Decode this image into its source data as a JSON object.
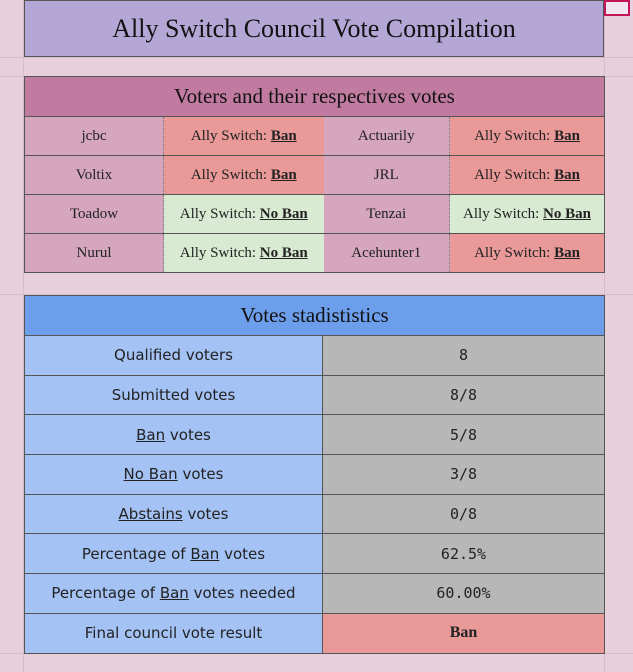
{
  "title": "Ally Switch Council Vote Compilation",
  "votes": {
    "header": "Voters and their respectives votes",
    "vote_prefix": "Ally Switch:",
    "rows": [
      {
        "a_name": "jcbc",
        "a_vote": "Ban",
        "b_name": "Actuarily",
        "b_vote": "Ban"
      },
      {
        "a_name": "Voltix",
        "a_vote": "Ban",
        "b_name": "JRL",
        "b_vote": "Ban"
      },
      {
        "a_name": "Toadow",
        "a_vote": "No Ban",
        "b_name": "Tenzai",
        "b_vote": "No Ban"
      },
      {
        "a_name": "Nurul",
        "a_vote": "No Ban",
        "b_name": "Acehunter1",
        "b_vote": "Ban"
      }
    ]
  },
  "stats": {
    "header": "Votes stadististics",
    "qualified_label": "Qualified voters",
    "qualified_value": "8",
    "submitted_label": "Submitted votes",
    "submitted_value": "8/8",
    "ban_word": "Ban",
    "noban_word": "No Ban",
    "abstains_word": "Abstains",
    "votes_word": "votes",
    "ban_value": "5/8",
    "noban_value": "3/8",
    "abstains_value": "0/8",
    "pct_prefix": "Percentage of",
    "pct_value": "62.5%",
    "needed_suffix": "votes needed",
    "needed_value": "60.00%",
    "result_label": "Final council vote result",
    "result_value": "Ban"
  },
  "colors": {
    "ban": "#ea9999",
    "no_ban": "#d9ead3",
    "voter_cell": "#d5a6bd",
    "votes_header": "#c27ba0",
    "stats_header": "#6d9eeb",
    "stats_label": "#a4c2f4",
    "stats_value": "#b7b7b7",
    "title_bg": "#b4a7d6"
  }
}
